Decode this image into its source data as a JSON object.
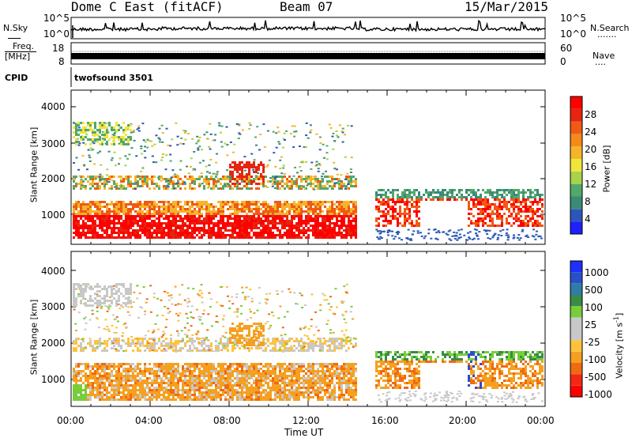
{
  "header": {
    "title": "Dome C East (fitACF)",
    "beam": "Beam 07",
    "date": "15/Mar/2015"
  },
  "noise_panel": {
    "left_label": "N.Sky",
    "left_ticks": [
      "10^5",
      "10^0"
    ],
    "right_ticks": [
      "10^5",
      "10^0"
    ],
    "right_label": "N.Search",
    "right_marker": "......."
  },
  "freq_panel": {
    "left_label_top": "Freq.",
    "left_label_unit": "[MHz]",
    "left_ticks": [
      "18",
      "8"
    ],
    "right_ticks": [
      "60",
      "0"
    ],
    "right_label": "Nave",
    "right_marker": "....",
    "cpid_label": "CPID",
    "program": "twofsound 3501"
  },
  "colors": {
    "power_scale": [
      "#1f1fff",
      "#2b57b8",
      "#3a8a78",
      "#52a86a",
      "#a9d24b",
      "#f2e53a",
      "#f5b52a",
      "#f28a1c",
      "#ef5a14",
      "#e62410",
      "#ff0000"
    ],
    "velocity_scale": [
      "#ff0000",
      "#f22814",
      "#f06a12",
      "#f5a020",
      "#ffc23a",
      "#c8c8c8",
      "#c8c8c8",
      "#78cd3a",
      "#3a8a48",
      "#2f7ca8",
      "#2a50c8",
      "#1f2fff"
    ]
  },
  "chart_data": [
    {
      "type": "heatmap",
      "title": "Power",
      "ylabel": "Slant Range [km]",
      "xlabel": "",
      "xlim": [
        "00:00",
        "24:00"
      ],
      "ylim": [
        180,
        4500
      ],
      "y_ticks": [
        "1000",
        "2000",
        "3000",
        "4000"
      ],
      "colorbar": {
        "label": "Power [dB]",
        "range": [
          0,
          32
        ],
        "ticks": [
          "4",
          "8",
          "12",
          "16",
          "20",
          "24",
          "28"
        ]
      }
    },
    {
      "type": "heatmap",
      "title": "Velocity",
      "ylabel": "Slant Range [km]",
      "xlabel": "Time UT",
      "xlim": [
        "00:00",
        "24:00"
      ],
      "x_ticks": [
        "00:00",
        "04:00",
        "08:00",
        "12:00",
        "16:00",
        "20:00",
        "00:00"
      ],
      "ylim": [
        180,
        4500
      ],
      "y_ticks": [
        "1000",
        "2000",
        "3000",
        "4000"
      ],
      "colorbar": {
        "label": "Velocity [m s",
        "label_sup": "-1",
        "label_close": "]",
        "ticks": [
          "1000",
          "500",
          "100",
          "25",
          "-25",
          "-100",
          "-500",
          "-1000"
        ]
      }
    }
  ]
}
